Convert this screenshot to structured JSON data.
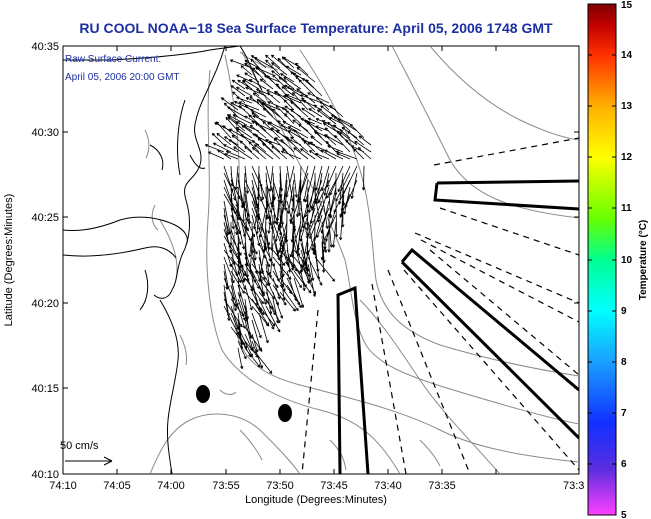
{
  "title": "RU COOL  NOAA−18  Sea Surface Temperature:  April 05, 2006 1748 GMT",
  "annotation": {
    "line1": "Raw Surface Current:",
    "line2": "April 05, 2006 20:00 GMT"
  },
  "scale_label": "50 cm/s",
  "x_axis": {
    "label": "Longitude (Degrees:Minutes)",
    "ticks": [
      "74:10",
      "74:05",
      "74:00",
      "73:55",
      "73:50",
      "73:45",
      "73:40",
      "73:35",
      "73:3"
    ]
  },
  "y_axis": {
    "label": "Latitude (Degrees:Minutes)",
    "ticks": [
      "40:10",
      "40:15",
      "40:20",
      "40:25",
      "40:30",
      "40:35"
    ]
  },
  "colorbar": {
    "label": "Temperature (°C)",
    "ticks": [
      "5",
      "6",
      "7",
      "8",
      "9",
      "10",
      "11",
      "12",
      "13",
      "14",
      "15"
    ],
    "colors": [
      "#ff40ff",
      "#5b2ee0",
      "#1030ff",
      "#1aa0ff",
      "#00ffff",
      "#00ff90",
      "#66ff00",
      "#ffff00",
      "#ffb000",
      "#ff3000",
      "#c00000",
      "#800000"
    ]
  },
  "map_colors": {
    "coastline": "#000000",
    "bathymetry": "#8a8a8a",
    "vectors": "#000000"
  }
}
